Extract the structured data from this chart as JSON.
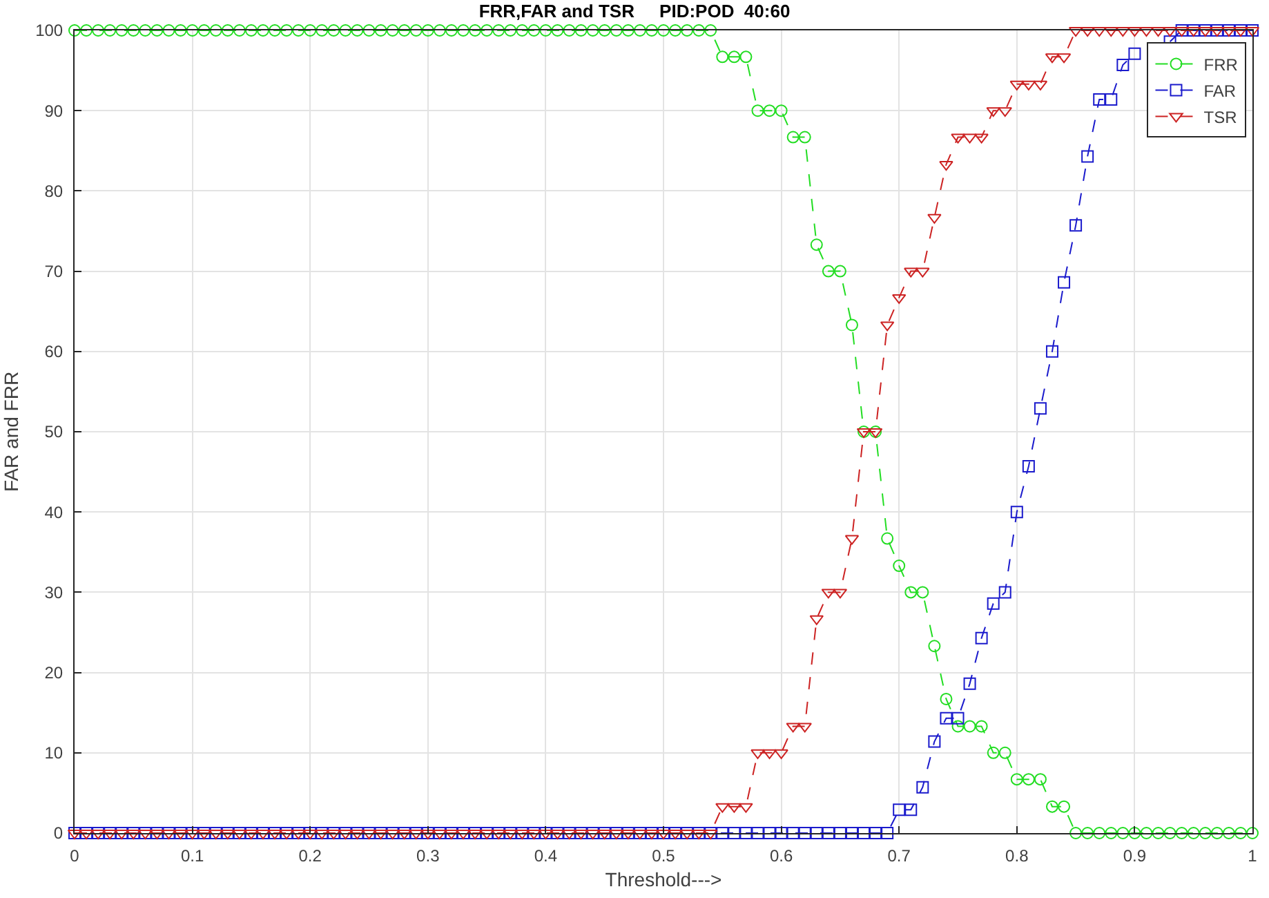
{
  "chart_data": {
    "type": "line",
    "title": "FRR,FAR and TSR     PID:POD  40:60",
    "xlabel": "Threshold--->",
    "ylabel": "FAR and FRR",
    "x": [
      0,
      0.01,
      0.02,
      0.03,
      0.04,
      0.05,
      0.06,
      0.07,
      0.08,
      0.09,
      0.1,
      0.11,
      0.12,
      0.13,
      0.14,
      0.15,
      0.16,
      0.17,
      0.18,
      0.19,
      0.2,
      0.21,
      0.22,
      0.23,
      0.24,
      0.25,
      0.26,
      0.27,
      0.28,
      0.29,
      0.3,
      0.31,
      0.32,
      0.33,
      0.34,
      0.35,
      0.36,
      0.37,
      0.38,
      0.39,
      0.4,
      0.41,
      0.42,
      0.43,
      0.44,
      0.45,
      0.46,
      0.47,
      0.48,
      0.49,
      0.5,
      0.51,
      0.52,
      0.53,
      0.54,
      0.55,
      0.56,
      0.57,
      0.58,
      0.59,
      0.6,
      0.61,
      0.62,
      0.63,
      0.64,
      0.65,
      0.66,
      0.67,
      0.68,
      0.69,
      0.7,
      0.71,
      0.72,
      0.73,
      0.74,
      0.75,
      0.76,
      0.77,
      0.78,
      0.79,
      0.8,
      0.81,
      0.82,
      0.83,
      0.84,
      0.85,
      0.86,
      0.87,
      0.88,
      0.89,
      0.9,
      0.91,
      0.92,
      0.93,
      0.94,
      0.95,
      0.96,
      0.97,
      0.98,
      0.99,
      1
    ],
    "series": [
      {
        "name": "FRR",
        "color": "#22dd22",
        "marker": "circle",
        "values": [
          100,
          100,
          100,
          100,
          100,
          100,
          100,
          100,
          100,
          100,
          100,
          100,
          100,
          100,
          100,
          100,
          100,
          100,
          100,
          100,
          100,
          100,
          100,
          100,
          100,
          100,
          100,
          100,
          100,
          100,
          100,
          100,
          100,
          100,
          100,
          100,
          100,
          100,
          100,
          100,
          100,
          100,
          100,
          100,
          100,
          100,
          100,
          100,
          100,
          100,
          100,
          100,
          100,
          100,
          100,
          96.7,
          96.7,
          96.7,
          90,
          90,
          90,
          86.7,
          86.7,
          73.3,
          70,
          70,
          63.3,
          50,
          50,
          36.7,
          33.3,
          30,
          30,
          23.3,
          16.7,
          13.3,
          13.3,
          13.3,
          10,
          10,
          6.7,
          6.7,
          6.7,
          3.3,
          3.3,
          0,
          0,
          0,
          0,
          0,
          0,
          0,
          0,
          0,
          0,
          0,
          0,
          0,
          0,
          0,
          0
        ]
      },
      {
        "name": "FAR",
        "color": "#1a1acc",
        "marker": "square",
        "values": [
          0,
          0,
          0,
          0,
          0,
          0,
          0,
          0,
          0,
          0,
          0,
          0,
          0,
          0,
          0,
          0,
          0,
          0,
          0,
          0,
          0,
          0,
          0,
          0,
          0,
          0,
          0,
          0,
          0,
          0,
          0,
          0,
          0,
          0,
          0,
          0,
          0,
          0,
          0,
          0,
          0,
          0,
          0,
          0,
          0,
          0,
          0,
          0,
          0,
          0,
          0,
          0,
          0,
          0,
          0,
          0,
          0,
          0,
          0,
          0,
          0,
          0,
          0,
          0,
          0,
          0,
          0,
          0,
          0,
          0,
          2.9,
          2.9,
          5.7,
          11.4,
          14.3,
          14.3,
          18.6,
          24.3,
          28.6,
          30,
          40,
          45.7,
          52.9,
          60,
          68.6,
          75.7,
          84.3,
          91.4,
          91.4,
          95.7,
          97.1,
          null,
          null,
          98.6,
          100,
          100,
          100,
          100,
          100,
          100,
          100
        ]
      },
      {
        "name": "TSR",
        "color": "#cc2222",
        "marker": "triangle",
        "values": [
          0,
          0,
          0,
          0,
          0,
          0,
          0,
          0,
          0,
          0,
          0,
          0,
          0,
          0,
          0,
          0,
          0,
          0,
          0,
          0,
          0,
          0,
          0,
          0,
          0,
          0,
          0,
          0,
          0,
          0,
          0,
          0,
          0,
          0,
          0,
          0,
          0,
          0,
          0,
          0,
          0,
          0,
          0,
          0,
          0,
          0,
          0,
          0,
          0,
          0,
          0,
          0,
          0,
          0,
          0,
          3.3,
          3.3,
          3.3,
          10,
          10,
          10,
          13.3,
          13.3,
          26.7,
          30,
          30,
          36.7,
          50,
          50,
          63.3,
          66.7,
          70,
          70,
          76.7,
          83.3,
          86.7,
          86.7,
          86.7,
          90,
          90,
          93.3,
          93.3,
          93.3,
          96.7,
          96.7,
          100,
          100,
          100,
          100,
          100,
          100,
          100,
          100,
          100,
          100,
          100,
          100,
          100,
          100,
          100,
          100
        ]
      }
    ],
    "xlim": [
      0,
      1
    ],
    "xticks": [
      0,
      0.1,
      0.2,
      0.3,
      0.4,
      0.5,
      0.6,
      0.7,
      0.8,
      0.9,
      1
    ],
    "ylim": [
      0,
      100
    ],
    "yticks": [
      0,
      10,
      20,
      30,
      40,
      50,
      60,
      70,
      80,
      90,
      100
    ],
    "grid": true,
    "legend": "top right",
    "line_style": "dashed"
  }
}
